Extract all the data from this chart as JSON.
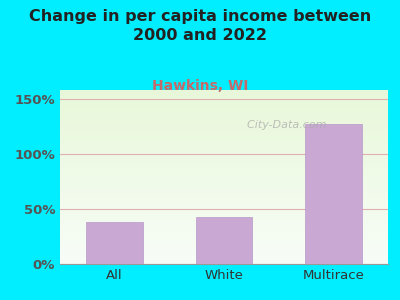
{
  "title": "Change in per capita income between\n2000 and 2022",
  "subtitle": "Hawkins, WI",
  "categories": [
    "All",
    "White",
    "Multirace"
  ],
  "values": [
    38,
    43,
    127
  ],
  "bar_color": "#c9a8d4",
  "bar_edge_color": "#b898c8",
  "title_fontsize": 11.5,
  "subtitle_fontsize": 10,
  "subtitle_color": "#c46a6a",
  "tick_label_fontsize": 9.5,
  "ytick_labels": [
    "0%",
    "50%",
    "100%",
    "150%"
  ],
  "ytick_values": [
    0,
    50,
    100,
    150
  ],
  "ylim": [
    0,
    158
  ],
  "background_outer": "#00eeff",
  "grid_color": "#e0b0b0",
  "watermark": "  City-Data.com",
  "watermark_color": "#aaaaaa"
}
